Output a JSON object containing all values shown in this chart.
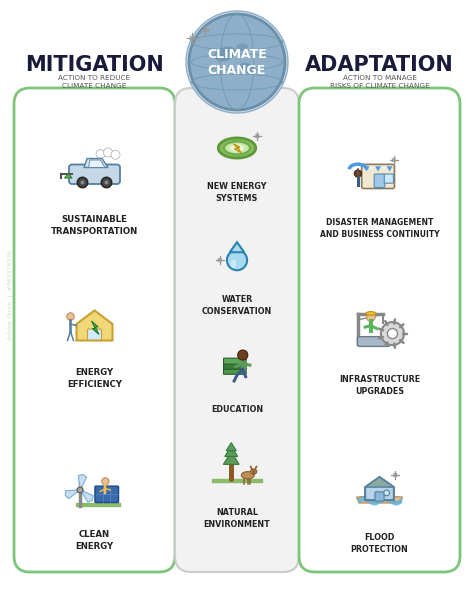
{
  "bg_color": "#ffffff",
  "title": "CLIMATE\nCHANGE",
  "globe_color": "#8fafc8",
  "globe_edge": "#6a8faa",
  "globe_text_color": "#ffffff",
  "mitigation_title": "MITIGATION",
  "mitigation_subtitle": "ACTION TO REDUCE\nCLIMATE CHANGE",
  "adaptation_title": "ADAPTATION",
  "adaptation_subtitle": "ACTION TO MANAGE\nRISKS OF CLIMATE CHANGE",
  "title_color": "#1a1a3a",
  "subtitle_color": "#555555",
  "left_box_edge": "#7dc57a",
  "right_box_edge": "#7dc57a",
  "center_box_face": "#f2f2f2",
  "center_box_edge": "#cccccc",
  "label_color": "#222222",
  "mitigation_items": [
    "SUSTAINABLE\nTRANSPORTATION",
    "ENERGY\nEFFICIENCY",
    "CLEAN\nENERGY"
  ],
  "center_items": [
    "NEW ENERGY\nSYSTEMS",
    "WATER\nCONSERVATION",
    "EDUCATION",
    "NATURAL\nENVIRONMENT"
  ],
  "adaptation_items": [
    "DISASTER MANAGEMENT\nAND BUSINESS CONTINUITY",
    "INFRASTRUCTURE\nUPGRADES",
    "FLOOD\nPROTECTION"
  ],
  "sparkle_color": "#999999",
  "car_body": "#c5d8e8",
  "car_edge": "#5580a0",
  "leaf_color": "#5db85d",
  "house_color": "#f0d878",
  "house_edge": "#c8a030",
  "bolt_color": "#f5c030",
  "green_ring": "#6ab46a",
  "green_fill": "#c8e8c8",
  "water_color": "#5ab4e0",
  "water_edge": "#2a84b0",
  "book_green": "#5a9a5a",
  "book_blue": "#4a7ab5",
  "tree_green": "#5a9a5a",
  "tree_trunk": "#8a5a20",
  "deer_color": "#a07040",
  "umbrella_color": "#5ab4e0",
  "gear_color": "#cccccc",
  "gear_edge": "#888888",
  "flood_house": "#b8d4e8",
  "flood_water": "#5ab4e0",
  "flood_hand": "#e8c090",
  "wind_blade": "#7ab0d8",
  "solar_color": "#4a7ab5",
  "crane_color": "#888888",
  "shop_color": "#f0e8d0",
  "shop_stripe": "#5ab4e0",
  "person_color": "#5580a0",
  "watermark_color": "#cccccc"
}
